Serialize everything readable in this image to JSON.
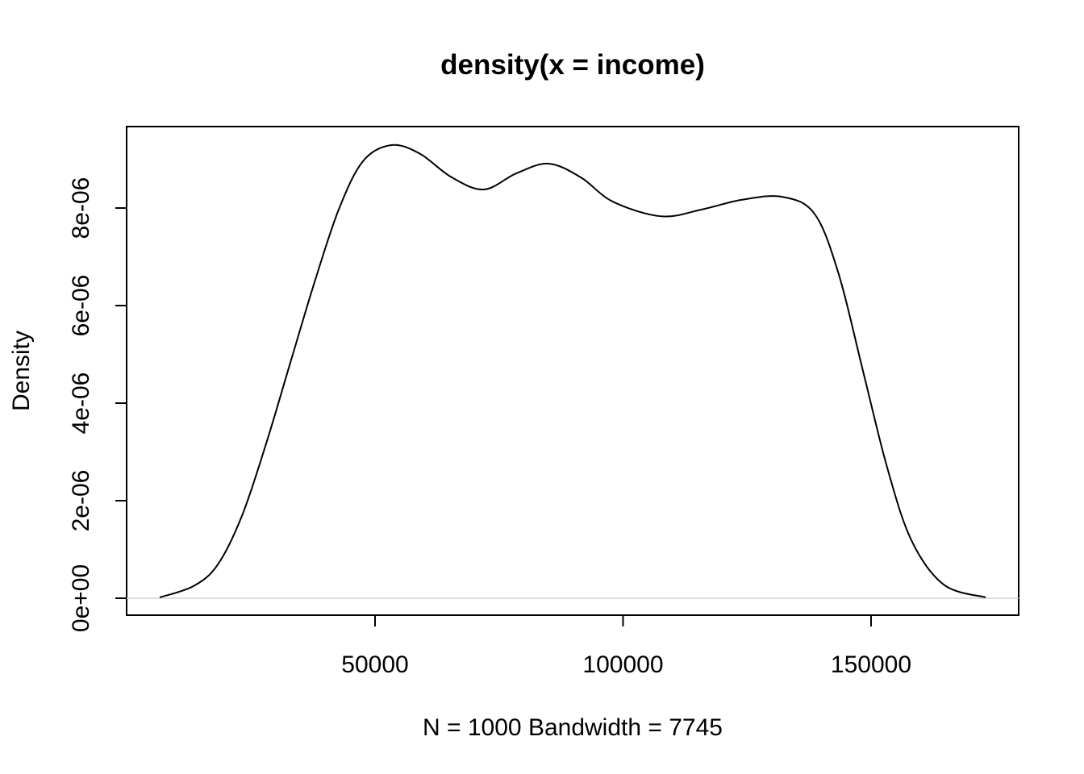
{
  "chart_data": {
    "type": "line",
    "title": "density(x = income)",
    "xlabel": "N = 1000   Bandwidth = 7745",
    "ylabel": "Density",
    "x": [
      6585,
      13415,
      18293,
      23171,
      28049,
      32927,
      37805,
      42683,
      47561,
      53252,
      58943,
      65447,
      71951,
      78455,
      84959,
      91463,
      97967,
      107724,
      115854,
      123984,
      132114,
      138618,
      143496,
      148374,
      153252,
      158130,
      164634,
      173089
    ],
    "series": [
      {
        "color": "#000000",
        "values": [
          1.7e-08,
          2.5e-07,
          6.9e-07,
          1.69e-06,
          3.17e-06,
          4.83e-06,
          6.48e-06,
          7.97e-06,
          8.96e-06,
          9.29e-06,
          9.12e-06,
          8.63e-06,
          8.38e-06,
          8.71e-06,
          8.91e-06,
          8.63e-06,
          8.13e-06,
          7.83e-06,
          7.97e-06,
          8.17e-06,
          8.23e-06,
          7.88e-06,
          6.64e-06,
          4.66e-06,
          2.68e-06,
          1.19e-06,
          2.8e-07,
          1.7e-08
        ]
      }
    ],
    "xlim": [
      -80,
      179760
    ],
    "xticks": [
      50000,
      100000,
      150000
    ],
    "ylim": [
      -3.47e-07,
      9.67e-06
    ],
    "yticks": [
      {
        "value": 0,
        "label": "0e+00"
      },
      {
        "value": 2e-06,
        "label": "2e-06"
      },
      {
        "value": 4e-06,
        "label": "4e-06"
      },
      {
        "value": 6e-06,
        "label": "6e-06"
      },
      {
        "value": 8e-06,
        "label": "8e-06"
      }
    ],
    "zero_line": true,
    "zero_line_color": "#d3d3d3"
  }
}
